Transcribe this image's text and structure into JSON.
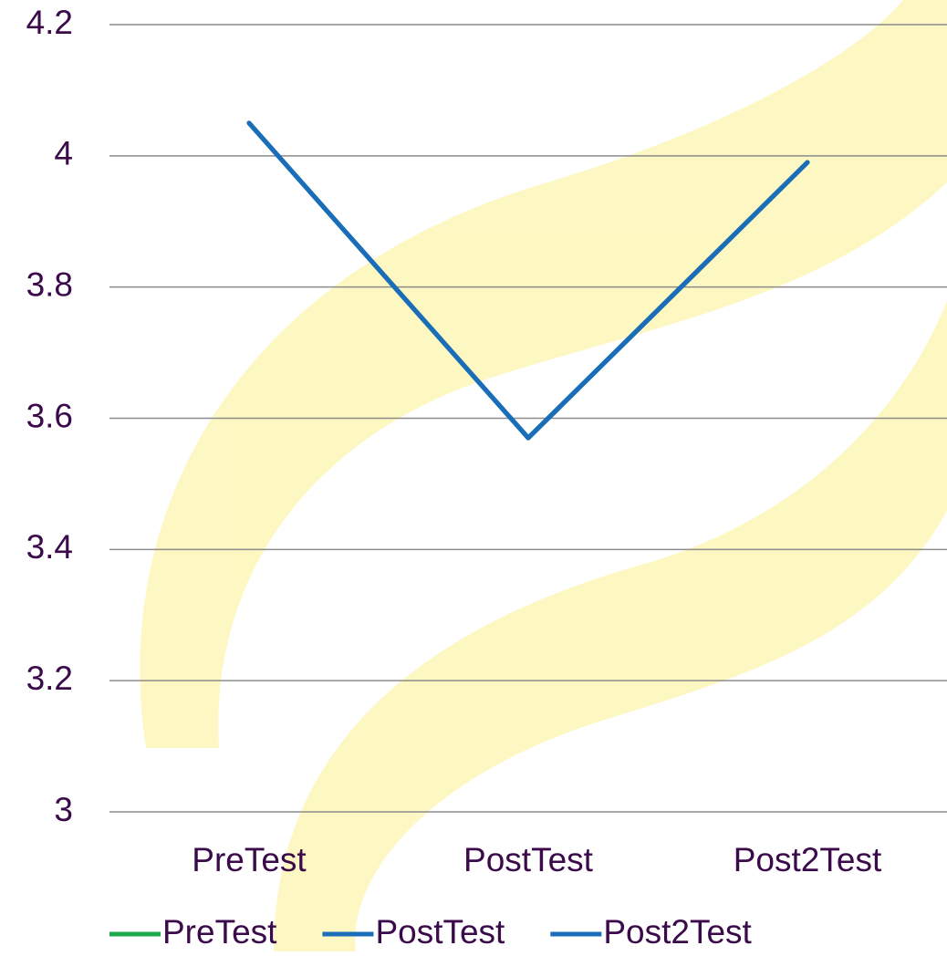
{
  "chart_data": {
    "type": "line",
    "categories": [
      "PreTest",
      "PostTest",
      "Post2Test"
    ],
    "series": [
      {
        "name": "PreTest",
        "color": "#1ea84e",
        "values": [
          4.05,
          3.57,
          3.99
        ]
      },
      {
        "name": "PostTest",
        "color": "#1a6db8",
        "values": [
          4.05,
          3.57,
          3.99
        ]
      },
      {
        "name": "Post2Test",
        "color": "#1a6db8",
        "values": [
          4.05,
          3.57,
          3.99
        ]
      }
    ],
    "ylim": [
      3,
      4.2
    ],
    "yticks": [
      3,
      3.2,
      3.4,
      3.6,
      3.8,
      4,
      4.2
    ],
    "grid": true,
    "legend": "bottom"
  }
}
